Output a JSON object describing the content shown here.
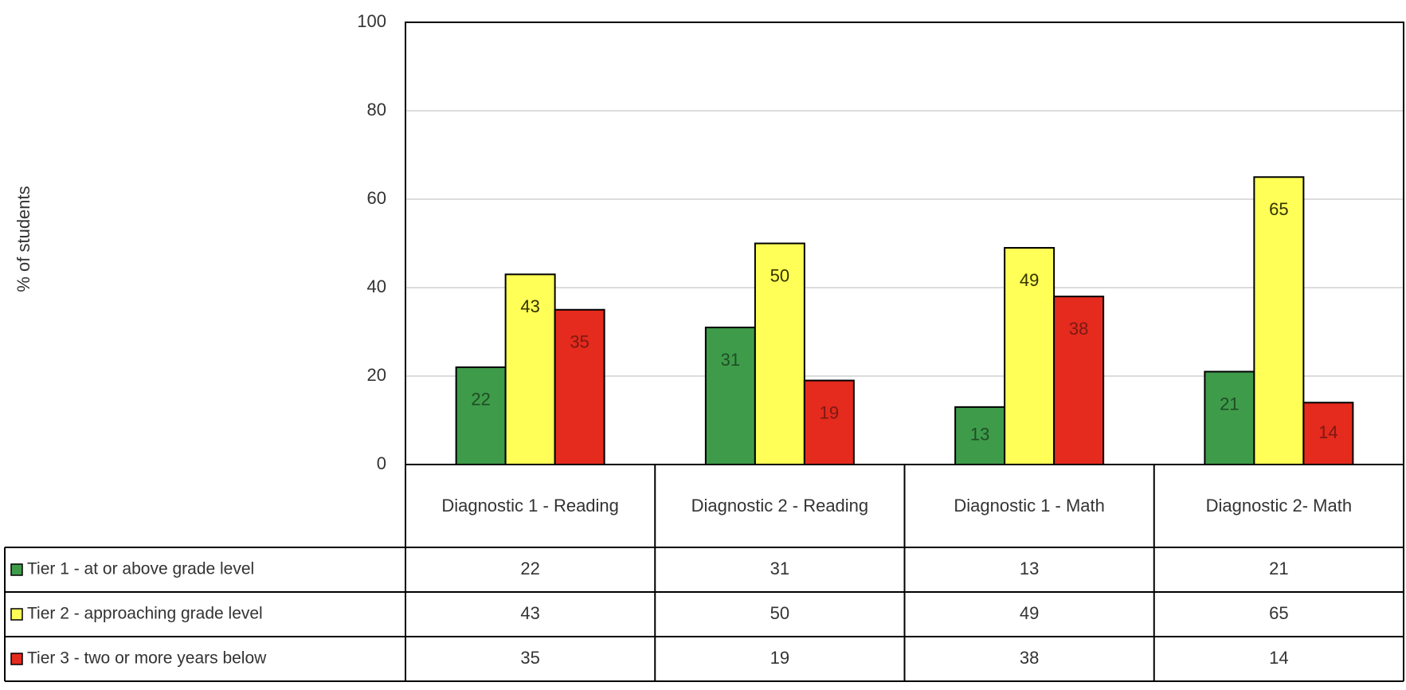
{
  "chart_data": {
    "type": "bar",
    "y_label": "% of students",
    "categories": [
      "Diagnostic 1 - Reading",
      "Diagnostic 2 - Reading",
      "Diagnostic 1 - Math",
      "Diagnostic 2- Math"
    ],
    "series": [
      {
        "name": "Tier 1 - at or above grade level",
        "color": "#3e9b4a",
        "label_color": "#1f4d24",
        "values": [
          22,
          31,
          13,
          21
        ]
      },
      {
        "name": "Tier 2 - approaching grade level",
        "color": "#ffff57",
        "label_color": "#333300",
        "values": [
          43,
          50,
          49,
          65
        ]
      },
      {
        "name": "Tier 3 - two or more years below",
        "color": "#e52a1e",
        "label_color": "#7a1a14",
        "values": [
          35,
          19,
          38,
          14
        ]
      }
    ],
    "ylim": [
      0,
      100
    ],
    "yticks": [
      0,
      20,
      40,
      60,
      80,
      100
    ],
    "grid": true,
    "data_table": true
  }
}
